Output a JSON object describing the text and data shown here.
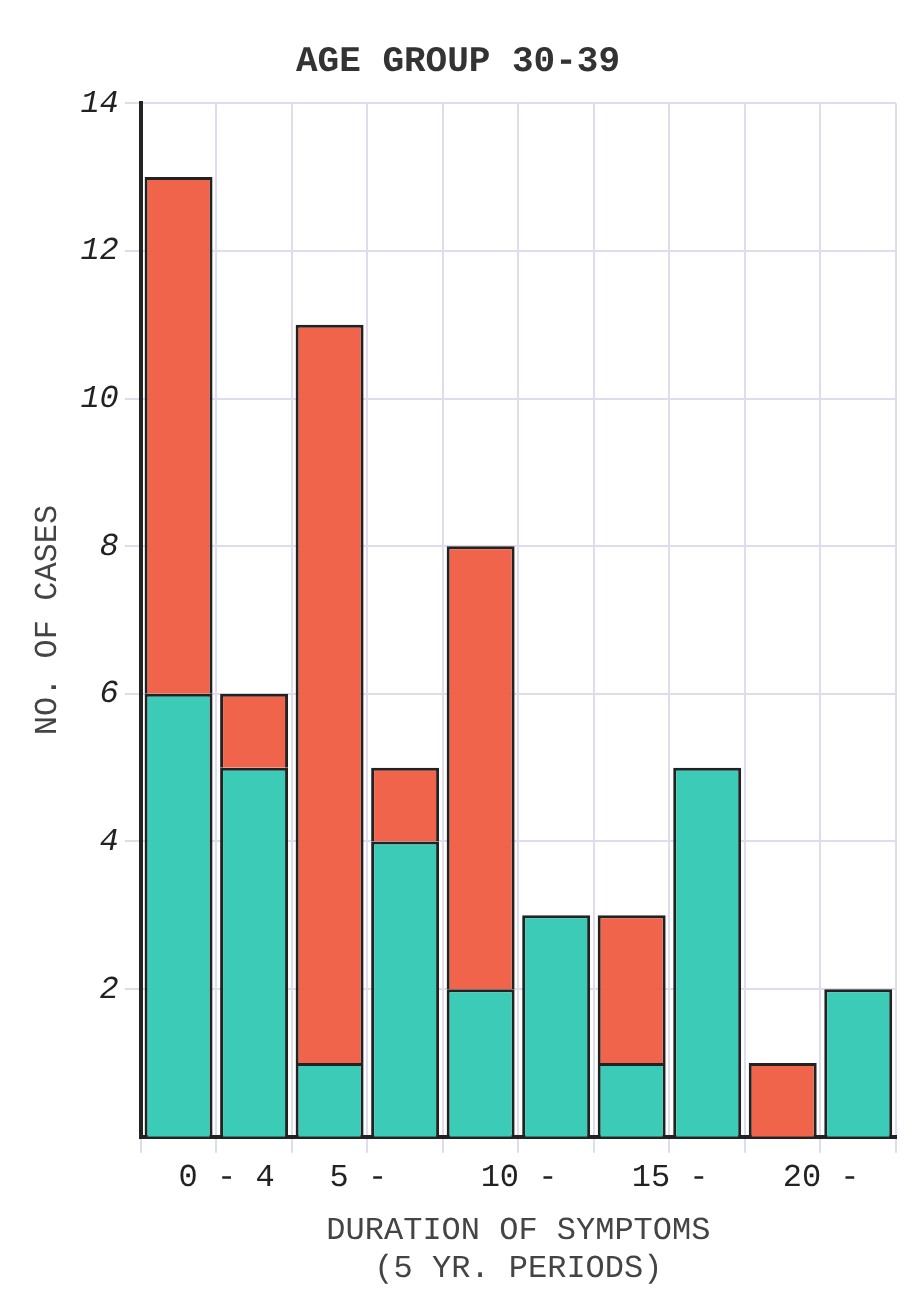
{
  "chart_data": {
    "type": "bar",
    "title": "AGE GROUP 30-39",
    "xlabel": "DURATION OF SYMPTOMS\n(5 YR. PERIODS)",
    "ylabel": "NO. OF CASES",
    "categories": [
      "0 - 4",
      null,
      "5 -",
      null,
      "10 -",
      null,
      "15 -",
      null,
      "20 -",
      null
    ],
    "stacked": true,
    "series": [
      {
        "color": "#3ccbb6",
        "values": [
          6,
          5,
          1,
          4,
          2,
          3,
          1,
          5,
          0,
          2
        ]
      },
      {
        "color": "#f0644c",
        "values": [
          7,
          1,
          10,
          1,
          6,
          0,
          2,
          0,
          1,
          0
        ]
      }
    ],
    "ylim": [
      0,
      14
    ],
    "yticks": [
      2,
      4,
      6,
      8,
      10,
      12,
      14
    ],
    "grid": true,
    "legend": false
  }
}
